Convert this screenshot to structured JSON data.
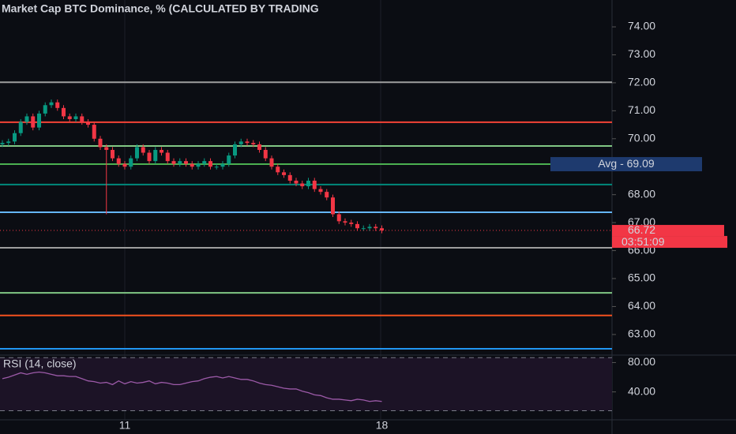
{
  "chart_data": {
    "type": "candlestick",
    "title": "Market Cap BTC Dominance, % (CALCULATED BY TRADING",
    "categories": [
      null,
      null,
      null,
      null,
      null,
      null,
      null,
      null,
      null,
      null,
      null,
      null,
      null,
      null,
      null,
      null,
      null,
      null,
      null,
      null,
      "11",
      null,
      null,
      null,
      null,
      null,
      null,
      null,
      null,
      null,
      null,
      null,
      null,
      null,
      null,
      null,
      null,
      null,
      null,
      null,
      null,
      null,
      null,
      null,
      null,
      null,
      null,
      null,
      null,
      null,
      null,
      null,
      null,
      null,
      null,
      null,
      null,
      null,
      null,
      null,
      null,
      null,
      "18"
    ],
    "open": [
      69.8,
      69.85,
      69.9,
      70.2,
      70.6,
      70.8,
      70.4,
      70.9,
      71.2,
      71.3,
      71.1,
      70.8,
      70.7,
      70.8,
      70.6,
      70.5,
      70.0,
      69.7,
      69.6,
      69.3,
      69.1,
      69.0,
      69.3,
      69.7,
      69.5,
      69.2,
      69.6,
      69.5,
      69.2,
      69.1,
      69.2,
      69.1,
      69.0,
      69.1,
      69.2,
      69.0,
      69.0,
      69.1,
      69.4,
      69.8,
      69.9,
      69.85,
      69.8,
      69.6,
      69.3,
      69.0,
      68.8,
      68.7,
      68.5,
      68.4,
      68.3,
      68.5,
      68.2,
      68.1,
      67.9,
      67.3,
      67.05,
      67.0,
      66.95,
      66.8,
      66.8,
      66.85,
      66.8
    ],
    "high": [
      69.95,
      70.0,
      70.3,
      70.7,
      70.9,
      70.9,
      71.0,
      71.3,
      71.4,
      71.4,
      71.2,
      70.9,
      70.9,
      70.9,
      70.7,
      70.6,
      70.1,
      69.8,
      69.7,
      69.4,
      69.2,
      69.4,
      69.8,
      69.8,
      69.6,
      69.7,
      69.7,
      69.6,
      69.3,
      69.3,
      69.3,
      69.2,
      69.2,
      69.3,
      69.3,
      69.1,
      69.2,
      69.5,
      69.9,
      70.0,
      70.0,
      69.95,
      69.9,
      69.7,
      69.4,
      69.1,
      68.9,
      68.8,
      68.6,
      68.5,
      68.6,
      68.6,
      68.3,
      68.2,
      68.0,
      67.4,
      67.15,
      67.1,
      67.05,
      66.9,
      66.95,
      66.95,
      66.9
    ],
    "low": [
      69.7,
      69.75,
      69.8,
      70.1,
      70.5,
      70.3,
      70.3,
      70.8,
      71.1,
      71.0,
      70.7,
      70.6,
      70.6,
      70.5,
      70.4,
      69.9,
      69.6,
      67.3,
      69.2,
      69.0,
      68.9,
      68.9,
      69.2,
      69.4,
      69.1,
      69.1,
      69.4,
      69.1,
      69.0,
      69.0,
      69.0,
      68.9,
      68.9,
      69.0,
      68.9,
      68.9,
      68.9,
      69.0,
      69.3,
      69.7,
      69.75,
      69.7,
      69.5,
      69.2,
      68.9,
      68.7,
      68.6,
      68.4,
      68.3,
      68.2,
      68.2,
      68.1,
      68.0,
      67.8,
      67.2,
      66.95,
      66.9,
      66.85,
      66.7,
      66.7,
      66.7,
      66.7,
      66.62
    ],
    "close": [
      69.85,
      69.9,
      70.2,
      70.6,
      70.8,
      70.4,
      70.9,
      71.2,
      71.3,
      71.1,
      70.8,
      70.7,
      70.8,
      70.6,
      70.5,
      70.0,
      69.7,
      69.6,
      69.3,
      69.1,
      69.0,
      69.3,
      69.7,
      69.5,
      69.2,
      69.6,
      69.5,
      69.2,
      69.1,
      69.2,
      69.1,
      69.0,
      69.1,
      69.2,
      69.0,
      69.0,
      69.1,
      69.4,
      69.8,
      69.9,
      69.85,
      69.8,
      69.6,
      69.3,
      69.0,
      68.8,
      68.7,
      68.5,
      68.4,
      68.3,
      68.5,
      68.2,
      68.1,
      67.9,
      67.3,
      67.05,
      67.0,
      66.95,
      66.8,
      66.8,
      66.85,
      66.8,
      66.72
    ],
    "up_color": "#089981",
    "down_color": "#f23645",
    "ylim": [
      62.32,
      74.96
    ],
    "yticks": [
      {
        "value": 63,
        "label": "63.00"
      },
      {
        "value": 64,
        "label": "64.00"
      },
      {
        "value": 65,
        "label": "65.00"
      },
      {
        "value": 66,
        "label": "66.00"
      },
      {
        "value": 67,
        "label": "67.00"
      },
      {
        "value": 68,
        "label": "68.00"
      },
      {
        "value": 69,
        "label": "69.00"
      },
      {
        "value": 70,
        "label": "70.00"
      },
      {
        "value": 71,
        "label": "71.00"
      },
      {
        "value": 72,
        "label": "72.00"
      },
      {
        "value": 73,
        "label": "73.00"
      },
      {
        "value": 74,
        "label": "74.00"
      }
    ],
    "hlines": [
      {
        "value": 72.02,
        "color": "#9e9e9e"
      },
      {
        "value": 70.59,
        "color": "#f44336"
      },
      {
        "value": 69.74,
        "color": "#81c784"
      },
      {
        "value": 69.09,
        "color": "#4caf50"
      },
      {
        "value": 68.36,
        "color": "#00897b"
      },
      {
        "value": 67.37,
        "color": "#64b5f6"
      },
      {
        "value": 66.1,
        "color": "#9e9e9e"
      },
      {
        "value": 64.49,
        "color": "#81c784"
      },
      {
        "value": 63.68,
        "color": "#f4511e"
      },
      {
        "value": 62.49,
        "color": "#2196f3"
      }
    ],
    "avg_label": "Avg - 69.09",
    "countdown": "03:51:09",
    "rsi": {
      "type": "line",
      "name": "RSI (14, close)",
      "color": "#9c5aa8",
      "values": [
        58,
        60,
        63,
        66,
        64,
        66,
        67,
        66,
        64,
        62,
        62,
        61,
        61,
        58,
        55,
        54,
        52,
        53,
        50,
        55,
        51,
        54,
        52,
        53,
        55,
        51,
        53,
        52,
        50,
        50,
        52,
        54,
        55,
        58,
        60,
        61,
        59,
        61,
        59,
        57,
        57,
        55,
        52,
        50,
        49,
        47,
        45,
        44,
        44,
        41,
        39,
        36,
        35,
        32,
        30,
        30,
        29,
        28,
        30,
        29,
        27,
        28,
        27
      ],
      "ylim": [
        2,
        88
      ],
      "yticks": [
        {
          "value": 40,
          "label": "40.00"
        },
        {
          "value": 80,
          "label": "80.00"
        }
      ],
      "bands": [
        86.7,
        14.4
      ]
    }
  }
}
